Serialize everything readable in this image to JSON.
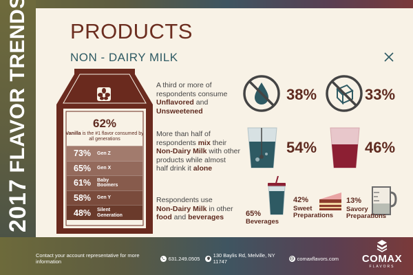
{
  "side_title": {
    "year": "2017",
    "text": "FLAVOR TRENDS",
    "year_display": "2",
    "year_rest": "17"
  },
  "header": {
    "title": "PRODUCTS",
    "subtitle": "NON - DAIRY MILK",
    "close_icon": "close-icon"
  },
  "carton": {
    "headline_pct": "62%",
    "note_bold": "Vanilla",
    "note_rest": "is the #1 flavor consumed by all generations",
    "generations": [
      {
        "pct": "73%",
        "label": "Gen Z",
        "color": "#a27b6d"
      },
      {
        "pct": "65%",
        "label": "Gen X",
        "color": "#946a5c"
      },
      {
        "pct": "61%",
        "label": "Baby Boomers",
        "color": "#875b4c"
      },
      {
        "pct": "58%",
        "label": "Gen Y",
        "color": "#7a4b3c"
      },
      {
        "pct": "48%",
        "label": "Silent Generation",
        "color": "#6a3a2b"
      }
    ]
  },
  "stats": {
    "unflavored": {
      "line1": "A third or more of",
      "line2": "respondents consume",
      "bold1": "Unflavored",
      "and": " and",
      "bold2": "Unsweetened",
      "pct_a": "38%",
      "pct_b": "33%"
    },
    "mix": {
      "line1": "More than half of",
      "line2_pre": "respondents ",
      "line2_bold": "mix",
      "line2_post": " their",
      "line3_bold": "Non-Dairy Milk",
      "line3_post": " with other",
      "line4": "products while almost",
      "line5_pre": "half drink it ",
      "line5_bold": "alone",
      "pct_a": "54%",
      "pct_b": "46%"
    },
    "use": {
      "line1": "Respondents use",
      "line2_bold": "Non-Dairy Milk",
      "line2_post": " in other",
      "line3_bold1": "food",
      "line3_mid": " and ",
      "line3_bold2": "beverages",
      "items": [
        {
          "pct": "65%",
          "label": "Beverages"
        },
        {
          "pct": "42%",
          "label": "Sweet Preparations"
        },
        {
          "pct": "13%",
          "label": "Savory Preparations"
        }
      ]
    }
  },
  "footer": {
    "contact": "Contact your account representative for more information",
    "phone": "631.249.0505",
    "address": "130 Baylis Rd, Melville, NY 11747",
    "website": "comaxflavors.com"
  },
  "brand": {
    "name": "COMAX",
    "sub": "FLAVORS"
  },
  "colors": {
    "accent": "#5e2a1f",
    "teal": "#2e5a63",
    "panel": "#f8f2e6"
  }
}
